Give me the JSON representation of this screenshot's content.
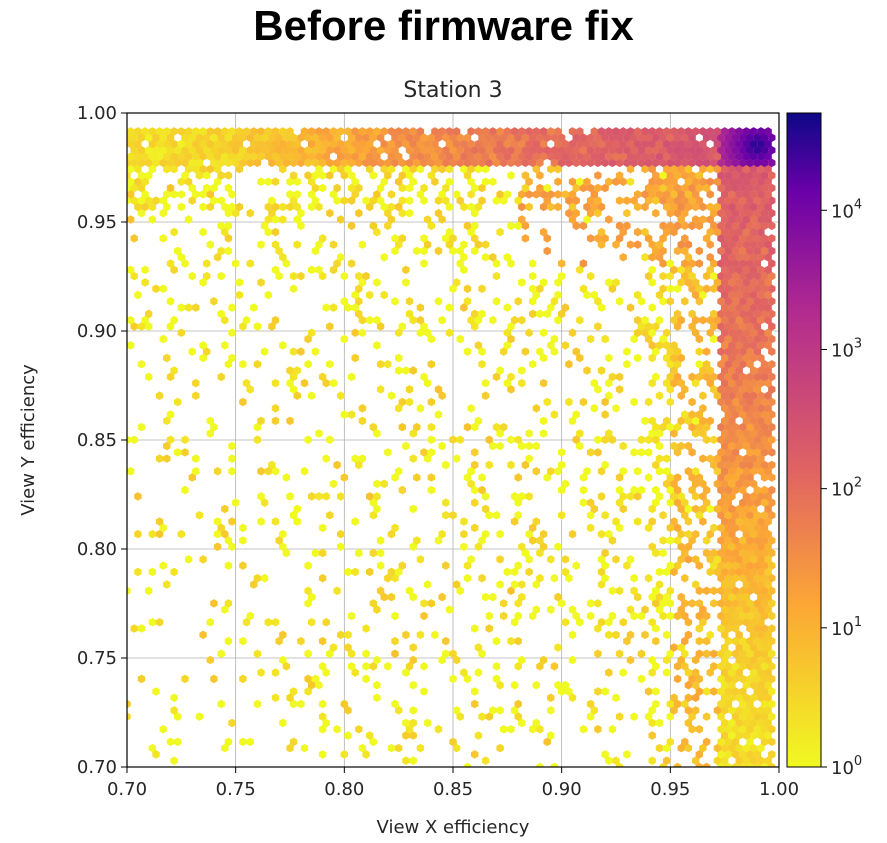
{
  "figure_title": "Before firmware fix",
  "chart_data": {
    "type": "heatmap",
    "subtype": "hexbin",
    "title": "Station 3",
    "xlabel": "View X efficiency",
    "ylabel": "View Y efficiency",
    "xlim": [
      0.7,
      1.0
    ],
    "ylim": [
      0.7,
      1.0
    ],
    "xticks": [
      "0.70",
      "0.75",
      "0.80",
      "0.85",
      "0.90",
      "0.95",
      "1.00"
    ],
    "yticks": [
      "0.70",
      "0.75",
      "0.80",
      "0.85",
      "0.90",
      "0.95",
      "1.00"
    ],
    "grid": true,
    "colorscale": "plasma_r",
    "color_scale_type": "log",
    "colorbar": {
      "range": [
        1,
        50000
      ],
      "ticks": [
        {
          "base": "10",
          "exp": "0",
          "value": 1
        },
        {
          "base": "10",
          "exp": "1",
          "value": 10
        },
        {
          "base": "10",
          "exp": "2",
          "value": 100
        },
        {
          "base": "10",
          "exp": "3",
          "value": 1000
        },
        {
          "base": "10",
          "exp": "4",
          "value": 10000
        }
      ]
    },
    "count_regions": [
      {
        "region": "x≈0.99, y≈0.985 (peak)",
        "count": 40000
      },
      {
        "region": "top band y≈0.975–0.99",
        "count_range": [
          5,
          500
        ]
      },
      {
        "region": "right band x≈0.975–0.995",
        "count_range": [
          5,
          500
        ]
      },
      {
        "region": "off-diagonal scatter",
        "count_range": [
          1,
          3
        ]
      }
    ]
  }
}
